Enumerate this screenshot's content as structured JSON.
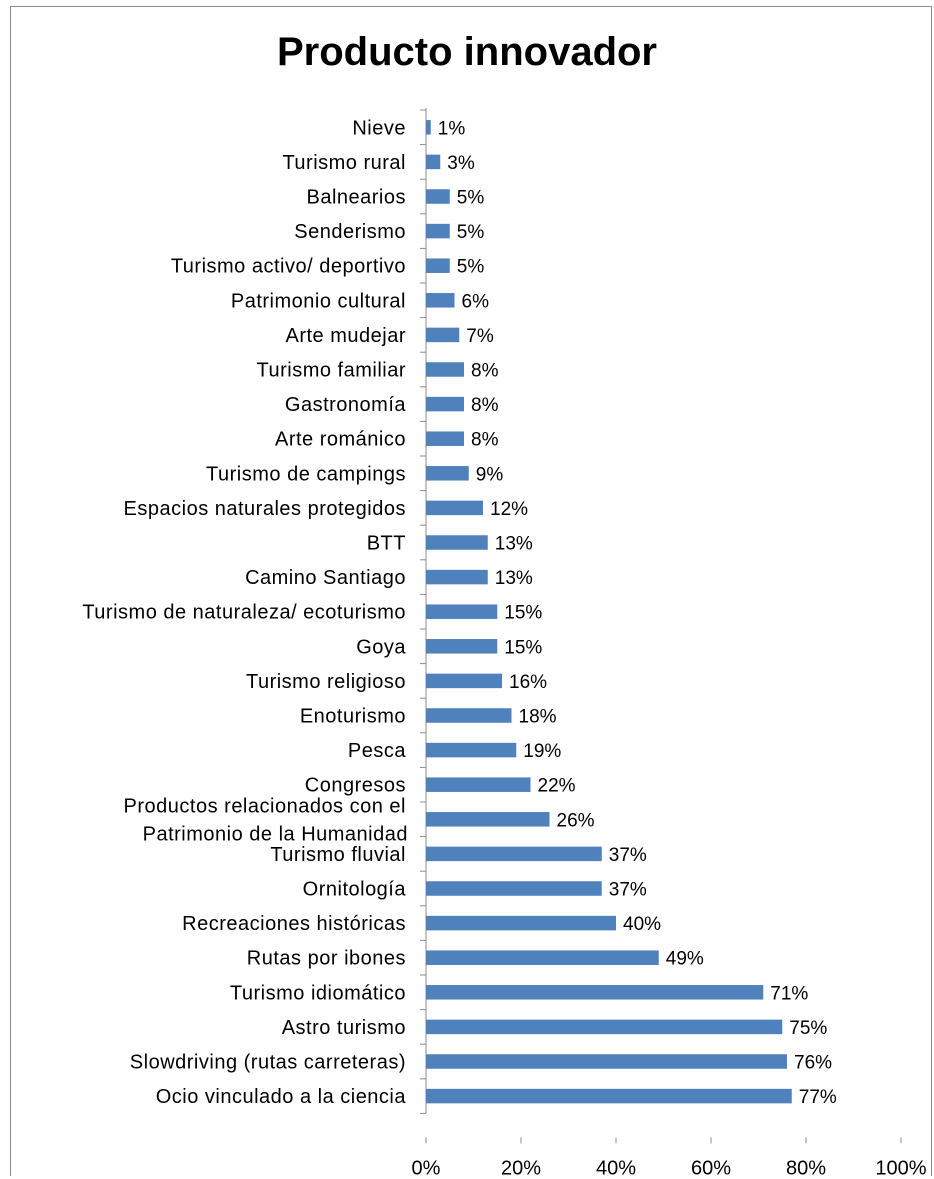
{
  "chart_data": {
    "type": "bar",
    "orientation": "horizontal",
    "title": "Producto innovador",
    "xlabel": "",
    "ylabel": "",
    "xlim": [
      0,
      100
    ],
    "x_ticks": [
      "0%",
      "20%",
      "40%",
      "60%",
      "80%",
      "100%"
    ],
    "grid": false,
    "legend": "none",
    "bar_color": "#4f81bd",
    "categories": [
      "Nieve",
      "Turismo rural",
      "Balnearios",
      "Senderismo",
      "Turismo activo/ deportivo",
      "Patrimonio cultural",
      "Arte mudejar",
      "Turismo familiar",
      "Gastronomía",
      "Arte románico",
      "Turismo de campings",
      "Espacios naturales protegidos",
      "BTT",
      "Camino Santiago",
      "Turismo de naturaleza/ ecoturismo",
      "Goya",
      "Turismo religioso",
      "Enoturismo",
      "Pesca",
      "Congresos",
      "Productos relacionados con el Patrimonio de la Humanidad",
      "Turismo fluvial",
      "Ornitología",
      "Recreaciones históricas",
      "Rutas por ibones",
      "Turismo idiomático",
      "Astro turismo",
      "Slowdriving (rutas carreteras)",
      "Ocio vinculado a la ciencia"
    ],
    "values": [
      1,
      3,
      5,
      5,
      5,
      6,
      7,
      8,
      8,
      8,
      9,
      12,
      13,
      13,
      15,
      15,
      16,
      18,
      19,
      22,
      26,
      37,
      37,
      40,
      49,
      71,
      75,
      76,
      77
    ],
    "data_labels": [
      "1%",
      "3%",
      "5%",
      "5%",
      "5%",
      "6%",
      "7%",
      "8%",
      "8%",
      "8%",
      "9%",
      "12%",
      "13%",
      "13%",
      "15%",
      "15%",
      "16%",
      "18%",
      "19%",
      "22%",
      "26%",
      "37%",
      "37%",
      "40%",
      "49%",
      "71%",
      "75%",
      "76%",
      "77%"
    ]
  }
}
